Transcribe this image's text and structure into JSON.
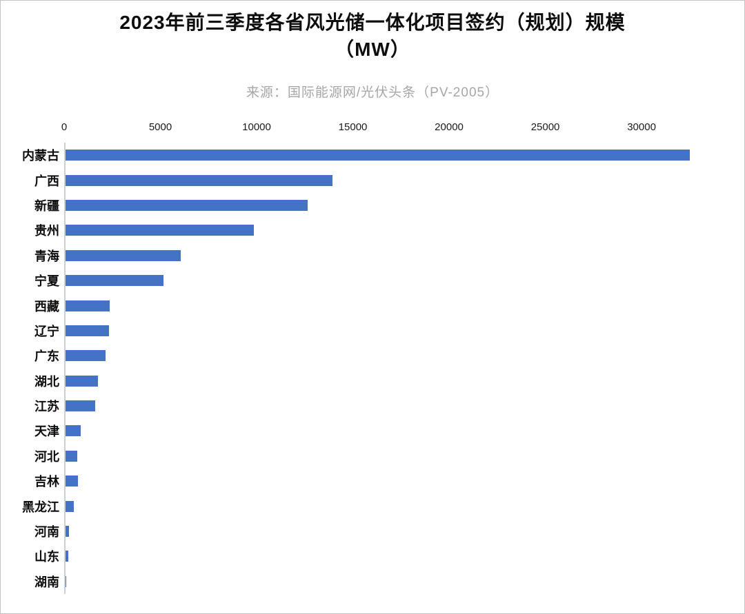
{
  "chart": {
    "title_line1": "2023年前三季度各省风光储一体化项目签约（规划）规模",
    "title_line2": "（MW）",
    "subtitle": "来源：国际能源网/光伏头条（PV-2005）"
  },
  "chart_data": {
    "type": "bar",
    "orientation": "horizontal",
    "title": "2023年前三季度各省风光储一体化项目签约（规划）规模（MW）",
    "source_note": "来源：国际能源网/光伏头条（PV-2005）",
    "categories": [
      "内蒙古",
      "广西",
      "新疆",
      "贵州",
      "青海",
      "宁夏",
      "西藏",
      "辽宁",
      "广东",
      "湖北",
      "江苏",
      "天津",
      "河北",
      "吉林",
      "黑龙江",
      "河南",
      "山东",
      "湖南"
    ],
    "values": [
      32500,
      13900,
      12600,
      9800,
      6000,
      5100,
      2300,
      2250,
      2100,
      1700,
      1550,
      800,
      620,
      650,
      430,
      180,
      150,
      20
    ],
    "x_ticks": [
      0,
      5000,
      10000,
      15000,
      20000,
      25000,
      30000
    ],
    "xlim": [
      0,
      34800
    ],
    "xlabel": "",
    "ylabel": "",
    "unit": "MW",
    "bar_color": "#4472C4",
    "legend": "none",
    "grid": "off",
    "axis_position": "top"
  }
}
